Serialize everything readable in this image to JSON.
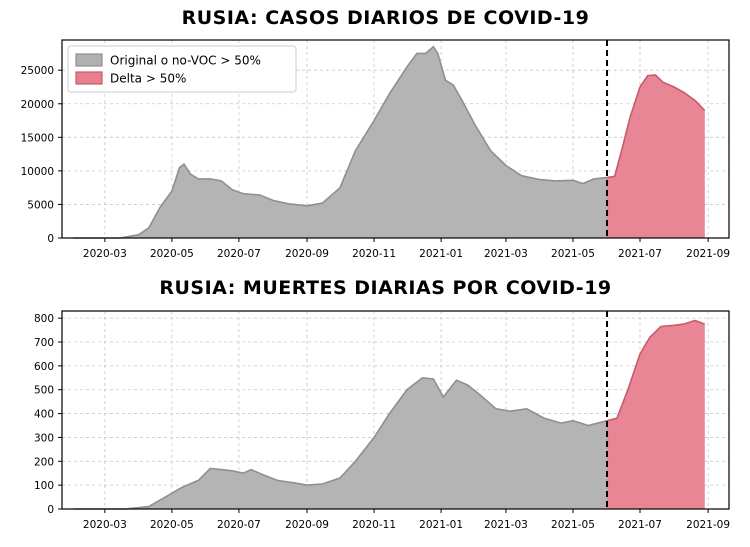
{
  "chart_data": [
    {
      "type": "area",
      "title": "RUSIA: CASOS DIARIOS DE COVID-19",
      "x_ticks": [
        "2020-03",
        "2020-05",
        "2020-07",
        "2020-09",
        "2020-11",
        "2021-01",
        "2021-03",
        "2021-05",
        "2021-07",
        "2021-09"
      ],
      "y_ticks": [
        "0",
        "5000",
        "10000",
        "15000",
        "20000",
        "25000"
      ],
      "ylim": [
        0,
        29500
      ],
      "xlim": [
        "2020-01-22",
        "2021-09-20"
      ],
      "switch_date": "2021-06-01",
      "legend": {
        "position": "top-left",
        "entries": [
          "Original o no-VOC > 50%",
          "Delta > 50%"
        ]
      },
      "series": [
        {
          "name": "Original o no-VOC > 50%",
          "color": "#b0b0b0",
          "edge": "#8f8f8f",
          "points": [
            [
              "2020-02-01",
              0
            ],
            [
              "2020-03-15",
              0
            ],
            [
              "2020-04-01",
              500
            ],
            [
              "2020-04-10",
              1500
            ],
            [
              "2020-04-20",
              4500
            ],
            [
              "2020-05-01",
              7000
            ],
            [
              "2020-05-08",
              10500
            ],
            [
              "2020-05-12",
              11000
            ],
            [
              "2020-05-18",
              9500
            ],
            [
              "2020-05-25",
              8800
            ],
            [
              "2020-06-05",
              8800
            ],
            [
              "2020-06-15",
              8500
            ],
            [
              "2020-06-25",
              7200
            ],
            [
              "2020-07-05",
              6600
            ],
            [
              "2020-07-20",
              6400
            ],
            [
              "2020-08-01",
              5600
            ],
            [
              "2020-08-15",
              5100
            ],
            [
              "2020-09-01",
              4800
            ],
            [
              "2020-09-15",
              5200
            ],
            [
              "2020-10-01",
              7500
            ],
            [
              "2020-10-15",
              13000
            ],
            [
              "2020-11-01",
              17500
            ],
            [
              "2020-11-15",
              21500
            ],
            [
              "2020-12-01",
              25500
            ],
            [
              "2020-12-10",
              27500
            ],
            [
              "2020-12-18",
              27500
            ],
            [
              "2020-12-25",
              28500
            ],
            [
              "2020-12-29",
              27500
            ],
            [
              "2021-01-05",
              23500
            ],
            [
              "2021-01-12",
              22800
            ],
            [
              "2021-01-20",
              20500
            ],
            [
              "2021-02-01",
              16800
            ],
            [
              "2021-02-15",
              13000
            ],
            [
              "2021-03-01",
              10800
            ],
            [
              "2021-03-15",
              9300
            ],
            [
              "2021-04-01",
              8700
            ],
            [
              "2021-04-15",
              8500
            ],
            [
              "2021-05-01",
              8600
            ],
            [
              "2021-05-10",
              8100
            ],
            [
              "2021-05-20",
              8800
            ],
            [
              "2021-06-01",
              9000
            ]
          ]
        },
        {
          "name": "Delta > 50%",
          "color": "#e8808f",
          "edge": "#c85a6a",
          "points": [
            [
              "2021-06-01",
              9000
            ],
            [
              "2021-06-08",
              9200
            ],
            [
              "2021-06-15",
              13500
            ],
            [
              "2021-06-22",
              18000
            ],
            [
              "2021-07-01",
              22500
            ],
            [
              "2021-07-08",
              24200
            ],
            [
              "2021-07-15",
              24300
            ],
            [
              "2021-07-22",
              23200
            ],
            [
              "2021-08-01",
              22500
            ],
            [
              "2021-08-10",
              21700
            ],
            [
              "2021-08-20",
              20500
            ],
            [
              "2021-08-29",
              19000
            ]
          ]
        }
      ]
    },
    {
      "type": "area",
      "title": "RUSIA: MUERTES DIARIAS POR COVID-19",
      "x_ticks": [
        "2020-03",
        "2020-05",
        "2020-07",
        "2020-09",
        "2020-11",
        "2021-01",
        "2021-03",
        "2021-05",
        "2021-07",
        "2021-09"
      ],
      "y_ticks": [
        "0",
        "100",
        "200",
        "300",
        "400",
        "500",
        "600",
        "700",
        "800"
      ],
      "ylim": [
        0,
        830
      ],
      "xlim": [
        "2020-01-22",
        "2021-09-20"
      ],
      "switch_date": "2021-06-01",
      "series": [
        {
          "name": "Original o no-VOC > 50%",
          "color": "#b0b0b0",
          "edge": "#8f8f8f",
          "points": [
            [
              "2020-02-01",
              0
            ],
            [
              "2020-03-20",
              0
            ],
            [
              "2020-04-10",
              10
            ],
            [
              "2020-04-25",
              50
            ],
            [
              "2020-05-10",
              90
            ],
            [
              "2020-05-25",
              120
            ],
            [
              "2020-06-05",
              170
            ],
            [
              "2020-06-15",
              165
            ],
            [
              "2020-06-25",
              160
            ],
            [
              "2020-07-05",
              150
            ],
            [
              "2020-07-12",
              165
            ],
            [
              "2020-07-22",
              145
            ],
            [
              "2020-08-05",
              120
            ],
            [
              "2020-08-20",
              110
            ],
            [
              "2020-09-01",
              100
            ],
            [
              "2020-09-15",
              105
            ],
            [
              "2020-10-01",
              130
            ],
            [
              "2020-10-15",
              200
            ],
            [
              "2020-11-01",
              300
            ],
            [
              "2020-11-15",
              400
            ],
            [
              "2020-12-01",
              500
            ],
            [
              "2020-12-15",
              550
            ],
            [
              "2020-12-25",
              545
            ],
            [
              "2021-01-03",
              470
            ],
            [
              "2021-01-15",
              540
            ],
            [
              "2021-01-25",
              520
            ],
            [
              "2021-02-05",
              480
            ],
            [
              "2021-02-20",
              420
            ],
            [
              "2021-03-05",
              410
            ],
            [
              "2021-03-20",
              420
            ],
            [
              "2021-04-05",
              380
            ],
            [
              "2021-04-20",
              360
            ],
            [
              "2021-05-01",
              370
            ],
            [
              "2021-05-15",
              350
            ],
            [
              "2021-06-01",
              370
            ]
          ]
        },
        {
          "name": "Delta > 50%",
          "color": "#e8808f",
          "edge": "#c85a6a",
          "points": [
            [
              "2021-06-01",
              370
            ],
            [
              "2021-06-10",
              380
            ],
            [
              "2021-06-20",
              500
            ],
            [
              "2021-07-01",
              650
            ],
            [
              "2021-07-10",
              720
            ],
            [
              "2021-07-20",
              765
            ],
            [
              "2021-08-01",
              770
            ],
            [
              "2021-08-10",
              775
            ],
            [
              "2021-08-20",
              790
            ],
            [
              "2021-08-29",
              775
            ]
          ]
        }
      ]
    }
  ]
}
